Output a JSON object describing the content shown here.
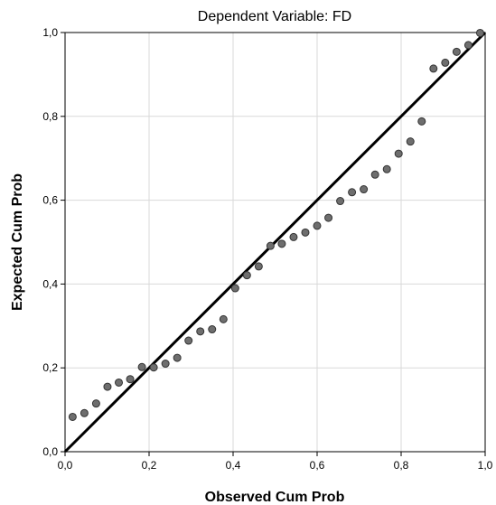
{
  "chart_data": {
    "type": "scatter",
    "title": "Dependent Variable: FD",
    "xlabel": "Observed Cum Prob",
    "ylabel": "Expected Cum Prob",
    "xlim": [
      0,
      1
    ],
    "ylim": [
      0,
      1
    ],
    "x_ticks": [
      "0,0",
      "0,2",
      "0,4",
      "0,6",
      "0,8",
      "1,0"
    ],
    "y_ticks": [
      "0,0",
      "0,2",
      "0,4",
      "0,6",
      "0,8",
      "1,0"
    ],
    "grid": true,
    "reference_line": {
      "x": [
        0,
        1
      ],
      "y": [
        0,
        1
      ],
      "color": "#000000"
    },
    "marker_color": "#6e6e6e",
    "points": [
      {
        "x": 0.018,
        "y": 0.083
      },
      {
        "x": 0.046,
        "y": 0.092
      },
      {
        "x": 0.074,
        "y": 0.115
      },
      {
        "x": 0.101,
        "y": 0.155
      },
      {
        "x": 0.128,
        "y": 0.165
      },
      {
        "x": 0.155,
        "y": 0.173
      },
      {
        "x": 0.183,
        "y": 0.202
      },
      {
        "x": 0.211,
        "y": 0.201
      },
      {
        "x": 0.239,
        "y": 0.21
      },
      {
        "x": 0.267,
        "y": 0.224
      },
      {
        "x": 0.294,
        "y": 0.265
      },
      {
        "x": 0.322,
        "y": 0.287
      },
      {
        "x": 0.35,
        "y": 0.292
      },
      {
        "x": 0.377,
        "y": 0.316
      },
      {
        "x": 0.405,
        "y": 0.39
      },
      {
        "x": 0.433,
        "y": 0.421
      },
      {
        "x": 0.461,
        "y": 0.442
      },
      {
        "x": 0.489,
        "y": 0.491
      },
      {
        "x": 0.516,
        "y": 0.496
      },
      {
        "x": 0.544,
        "y": 0.512
      },
      {
        "x": 0.572,
        "y": 0.523
      },
      {
        "x": 0.6,
        "y": 0.539
      },
      {
        "x": 0.627,
        "y": 0.558
      },
      {
        "x": 0.655,
        "y": 0.598
      },
      {
        "x": 0.683,
        "y": 0.619
      },
      {
        "x": 0.711,
        "y": 0.626
      },
      {
        "x": 0.738,
        "y": 0.661
      },
      {
        "x": 0.766,
        "y": 0.674
      },
      {
        "x": 0.794,
        "y": 0.711
      },
      {
        "x": 0.822,
        "y": 0.74
      },
      {
        "x": 0.849,
        "y": 0.788
      },
      {
        "x": 0.877,
        "y": 0.914
      },
      {
        "x": 0.905,
        "y": 0.928
      },
      {
        "x": 0.932,
        "y": 0.954
      },
      {
        "x": 0.96,
        "y": 0.97
      },
      {
        "x": 0.988,
        "y": 0.999
      }
    ]
  }
}
